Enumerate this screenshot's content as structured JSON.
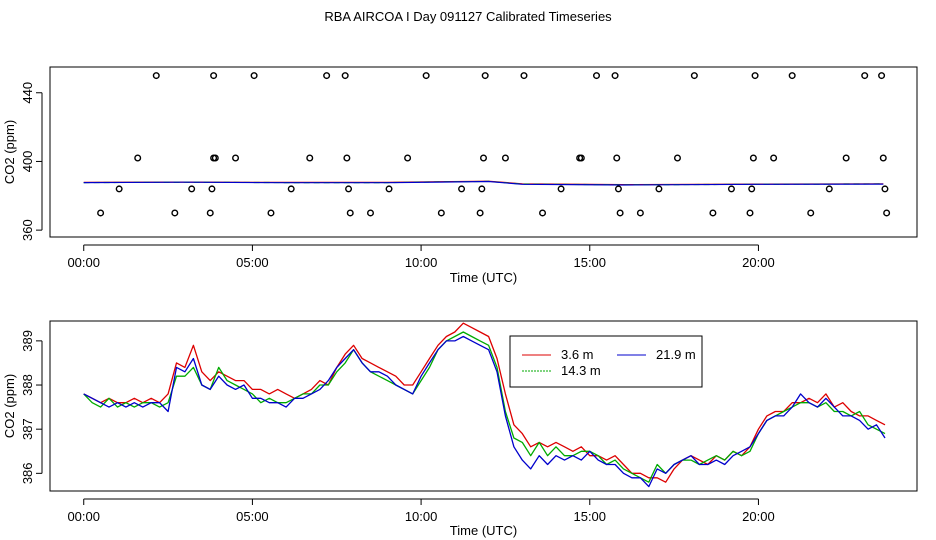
{
  "figure_title": "RBA AIRCOA I  Day 091127  Calibrated Timeseries",
  "colors": {
    "red": "#dd0000",
    "green": "#00aa00",
    "blue": "#0000cc"
  },
  "chart_data": [
    {
      "type": "line",
      "xlabel": "Time (UTC)",
      "ylabel": "CO2 (ppm)",
      "xlim": [
        -1.0,
        24.7
      ],
      "ylim": [
        356,
        455
      ],
      "x_ticks": [
        0,
        5,
        10,
        15,
        20
      ],
      "x_tick_labels": [
        "00:00",
        "05:00",
        "10:00",
        "15:00",
        "20:00"
      ],
      "y_ticks": [
        360,
        400,
        440
      ],
      "y_tick_labels": [
        "360",
        "400",
        "440"
      ],
      "grid": false,
      "series": [
        {
          "color": "#dd0000",
          "x": [
            0,
            3,
            6,
            9,
            10.5,
            12,
            13,
            16,
            20,
            23.7
          ],
          "y": [
            387.8,
            388.0,
            387.8,
            387.8,
            388.2,
            388.5,
            387.0,
            386.5,
            386.8,
            387.0
          ]
        },
        {
          "color": "#00aa00",
          "x": [
            0,
            3,
            6,
            9,
            10.5,
            12,
            13,
            16,
            20,
            23.7
          ],
          "y": [
            387.7,
            387.9,
            387.7,
            387.7,
            388.1,
            388.4,
            386.8,
            386.4,
            386.7,
            386.9
          ]
        },
        {
          "color": "#0000cc",
          "x": [
            0,
            3,
            6,
            9,
            10.5,
            12,
            13,
            16,
            20,
            23.7
          ],
          "y": [
            387.7,
            387.9,
            387.6,
            387.6,
            388.0,
            388.3,
            386.7,
            386.3,
            386.7,
            386.8
          ]
        }
      ],
      "points": {
        "x": [
          0.5,
          1.05,
          1.6,
          2.15,
          2.7,
          3.2,
          3.75,
          3.8,
          3.85,
          3.85,
          3.9,
          4.5,
          5.05,
          5.55,
          6.15,
          6.7,
          7.2,
          7.75,
          7.8,
          7.85,
          7.9,
          8.5,
          9.05,
          9.6,
          10.15,
          10.6,
          11.2,
          11.75,
          11.8,
          11.85,
          11.9,
          12.5,
          13.05,
          13.6,
          14.15,
          14.7,
          14.75,
          15.2,
          15.75,
          15.8,
          15.85,
          15.9,
          16.5,
          17.05,
          17.6,
          18.1,
          18.65,
          19.2,
          19.75,
          19.8,
          19.85,
          19.9,
          20.45,
          21.0,
          21.55,
          22.1,
          22.6,
          23.15,
          23.65,
          23.7,
          23.75,
          23.8
        ],
        "y": [
          370,
          384,
          402,
          450,
          370,
          384,
          370,
          384,
          402,
          450,
          402,
          402,
          450,
          370,
          384,
          402,
          450,
          450,
          402,
          384,
          370,
          370,
          384,
          402,
          450,
          370,
          384,
          370,
          384,
          402,
          450,
          402,
          450,
          370,
          384,
          402,
          402,
          450,
          450,
          402,
          384,
          370,
          370,
          384,
          402,
          450,
          370,
          384,
          370,
          384,
          402,
          450,
          402,
          450,
          370,
          384,
          402,
          450,
          450,
          402,
          384,
          370
        ]
      }
    },
    {
      "type": "line",
      "xlabel": "Time (UTC)",
      "ylabel": "CO2 (ppm)",
      "xlim": [
        -1.0,
        24.7
      ],
      "ylim": [
        385.6,
        389.45
      ],
      "x_ticks": [
        0,
        5,
        10,
        15,
        20
      ],
      "x_tick_labels": [
        "00:00",
        "05:00",
        "10:00",
        "15:00",
        "20:00"
      ],
      "y_ticks": [
        386,
        387,
        388,
        389
      ],
      "y_tick_labels": [
        "386",
        "387",
        "388",
        "389"
      ],
      "grid": false,
      "legend": {
        "position": "top-center"
      },
      "series": [
        {
          "name": "3.6 m",
          "color": "#dd0000",
          "x": [
            0,
            0.25,
            0.5,
            0.75,
            1,
            1.25,
            1.5,
            1.75,
            2,
            2.25,
            2.5,
            2.75,
            3,
            3.25,
            3.5,
            3.75,
            4,
            4.25,
            4.5,
            4.75,
            5,
            5.25,
            5.5,
            5.75,
            6,
            6.25,
            6.5,
            6.75,
            7,
            7.25,
            7.5,
            7.75,
            8,
            8.25,
            8.5,
            8.75,
            9,
            9.25,
            9.5,
            9.75,
            10,
            10.25,
            10.5,
            10.75,
            11,
            11.25,
            11.5,
            11.75,
            12,
            12.25,
            12.5,
            12.75,
            13,
            13.25,
            13.5,
            13.75,
            14,
            14.25,
            14.5,
            14.75,
            15,
            15.25,
            15.5,
            15.75,
            16,
            16.25,
            16.5,
            16.75,
            17,
            17.25,
            17.5,
            17.75,
            18,
            18.25,
            18.5,
            18.75,
            19,
            19.25,
            19.5,
            19.75,
            20,
            20.25,
            20.5,
            20.75,
            21,
            21.25,
            21.5,
            21.75,
            22,
            22.25,
            22.5,
            22.75,
            23,
            23.25,
            23.5,
            23.75
          ],
          "y": [
            387.8,
            387.7,
            387.6,
            387.7,
            387.6,
            387.6,
            387.7,
            387.6,
            387.7,
            387.6,
            387.8,
            388.5,
            388.4,
            388.9,
            388.3,
            388.1,
            388.3,
            388.2,
            388.1,
            388.1,
            387.9,
            387.9,
            387.8,
            387.9,
            387.8,
            387.7,
            387.8,
            387.9,
            388.1,
            388.0,
            388.4,
            388.7,
            388.9,
            388.6,
            388.5,
            388.4,
            388.3,
            388.2,
            388.0,
            388.0,
            388.3,
            388.6,
            388.9,
            389.1,
            389.2,
            389.4,
            389.3,
            389.2,
            389.1,
            388.6,
            387.8,
            387.1,
            386.9,
            386.6,
            386.7,
            386.6,
            386.7,
            386.6,
            386.5,
            386.6,
            386.4,
            386.4,
            386.3,
            386.4,
            386.2,
            386.0,
            386.0,
            385.9,
            385.9,
            385.8,
            386.1,
            386.3,
            386.4,
            386.3,
            386.2,
            386.4,
            386.3,
            386.5,
            386.4,
            386.6,
            387.0,
            387.3,
            387.4,
            387.4,
            387.6,
            387.6,
            387.7,
            387.6,
            387.8,
            387.5,
            387.6,
            387.4,
            387.3,
            387.3,
            387.2,
            387.1
          ]
        },
        {
          "name": "14.3 m",
          "color": "#00aa00",
          "x": [
            0,
            0.25,
            0.5,
            0.75,
            1,
            1.25,
            1.5,
            1.75,
            2,
            2.25,
            2.5,
            2.75,
            3,
            3.25,
            3.5,
            3.75,
            4,
            4.25,
            4.5,
            4.75,
            5,
            5.25,
            5.5,
            5.75,
            6,
            6.25,
            6.5,
            6.75,
            7,
            7.25,
            7.5,
            7.75,
            8,
            8.25,
            8.5,
            8.75,
            9,
            9.25,
            9.5,
            9.75,
            10,
            10.25,
            10.5,
            10.75,
            11,
            11.25,
            11.5,
            11.75,
            12,
            12.25,
            12.5,
            12.75,
            13,
            13.25,
            13.5,
            13.75,
            14,
            14.25,
            14.5,
            14.75,
            15,
            15.25,
            15.5,
            15.75,
            16,
            16.25,
            16.5,
            16.75,
            17,
            17.25,
            17.5,
            17.75,
            18,
            18.25,
            18.5,
            18.75,
            19,
            19.25,
            19.5,
            19.75,
            20,
            20.25,
            20.5,
            20.75,
            21,
            21.25,
            21.5,
            21.75,
            22,
            22.25,
            22.5,
            22.75,
            23,
            23.25,
            23.5,
            23.75
          ],
          "y": [
            387.8,
            387.6,
            387.5,
            387.7,
            387.5,
            387.6,
            387.5,
            387.6,
            387.6,
            387.5,
            387.6,
            388.2,
            388.2,
            388.4,
            388.0,
            387.9,
            388.4,
            388.1,
            388.0,
            387.9,
            387.8,
            387.6,
            387.7,
            387.6,
            387.6,
            387.7,
            387.8,
            387.8,
            388.0,
            388.0,
            388.3,
            388.5,
            388.8,
            388.5,
            388.3,
            388.2,
            388.1,
            388.0,
            387.9,
            387.8,
            388.1,
            388.4,
            388.8,
            389.0,
            389.1,
            389.2,
            389.1,
            389.0,
            388.9,
            388.4,
            387.4,
            386.8,
            386.7,
            386.4,
            386.7,
            386.4,
            386.6,
            386.4,
            386.4,
            386.5,
            386.5,
            386.4,
            386.2,
            386.3,
            386.1,
            386.0,
            385.9,
            385.8,
            386.2,
            386.0,
            386.2,
            386.3,
            386.3,
            386.2,
            386.3,
            386.4,
            386.3,
            386.5,
            386.4,
            386.5,
            386.9,
            387.2,
            387.3,
            387.4,
            387.5,
            387.6,
            387.6,
            387.5,
            387.6,
            387.4,
            387.4,
            387.3,
            387.4,
            387.1,
            387.0,
            386.9
          ]
        },
        {
          "name": "21.9 m",
          "color": "#0000cc",
          "x": [
            0,
            0.25,
            0.5,
            0.75,
            1,
            1.25,
            1.5,
            1.75,
            2,
            2.25,
            2.5,
            2.75,
            3,
            3.25,
            3.5,
            3.75,
            4,
            4.25,
            4.5,
            4.75,
            5,
            5.25,
            5.5,
            5.75,
            6,
            6.25,
            6.5,
            6.75,
            7,
            7.25,
            7.5,
            7.75,
            8,
            8.25,
            8.5,
            8.75,
            9,
            9.25,
            9.5,
            9.75,
            10,
            10.25,
            10.5,
            10.75,
            11,
            11.25,
            11.5,
            11.75,
            12,
            12.25,
            12.5,
            12.75,
            13,
            13.25,
            13.5,
            13.75,
            14,
            14.25,
            14.5,
            14.75,
            15,
            15.25,
            15.5,
            15.75,
            16,
            16.25,
            16.5,
            16.75,
            17,
            17.25,
            17.5,
            17.75,
            18,
            18.25,
            18.5,
            18.75,
            19,
            19.25,
            19.5,
            19.75,
            20,
            20.25,
            20.5,
            20.75,
            21,
            21.25,
            21.5,
            21.75,
            22,
            22.25,
            22.5,
            22.75,
            23,
            23.25,
            23.5,
            23.75
          ],
          "y": [
            387.8,
            387.7,
            387.6,
            387.5,
            387.6,
            387.5,
            387.6,
            387.5,
            387.6,
            387.6,
            387.4,
            388.4,
            388.3,
            388.6,
            388.0,
            387.9,
            388.2,
            388.0,
            387.9,
            388.0,
            387.7,
            387.7,
            387.6,
            387.6,
            387.5,
            387.7,
            387.7,
            387.8,
            387.9,
            388.1,
            388.4,
            388.6,
            388.8,
            388.5,
            388.3,
            388.3,
            388.2,
            388.0,
            387.9,
            387.8,
            388.2,
            388.5,
            388.8,
            389.0,
            389.0,
            389.1,
            389.0,
            388.9,
            388.8,
            388.3,
            387.3,
            386.6,
            386.3,
            386.1,
            386.4,
            386.2,
            386.4,
            386.3,
            386.4,
            386.3,
            386.5,
            386.3,
            386.2,
            386.2,
            386.0,
            385.9,
            385.9,
            385.7,
            386.1,
            386.0,
            386.2,
            386.3,
            386.4,
            386.2,
            386.2,
            386.3,
            386.2,
            386.4,
            386.5,
            386.6,
            386.9,
            387.2,
            387.3,
            387.3,
            387.5,
            387.8,
            387.6,
            387.5,
            387.7,
            387.5,
            387.3,
            387.3,
            387.2,
            387.0,
            387.1,
            386.8
          ]
        }
      ]
    }
  ]
}
